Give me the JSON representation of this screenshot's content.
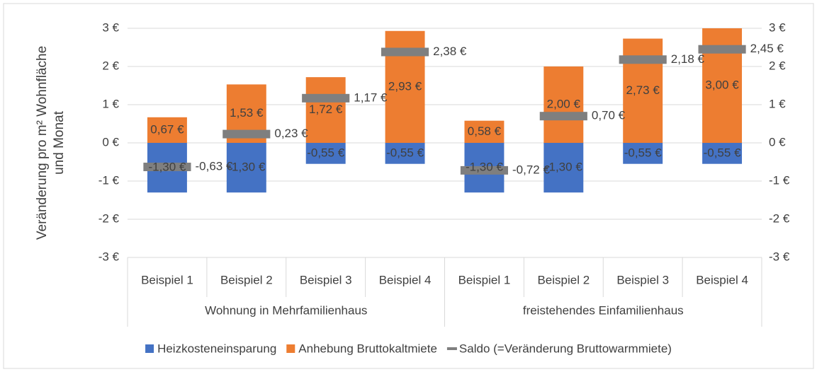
{
  "chart_data": {
    "type": "bar",
    "y_label": [
      "Veränderung pro m² Wohnfläche",
      "und Monat"
    ],
    "groups": [
      {
        "name": "Wohnung in Mehrfamilienhaus",
        "categories": [
          "Beispiel 1",
          "Beispiel 2",
          "Beispiel 3",
          "Beispiel 4"
        ]
      },
      {
        "name": "freistehendes Einfamilienhaus",
        "categories": [
          "Beispiel 1",
          "Beispiel 2",
          "Beispiel 3",
          "Beispiel 4"
        ]
      }
    ],
    "series": [
      {
        "name": "Heizkosteneinsparung",
        "color": "#4472c4",
        "kind": "bar",
        "values": [
          -1.3,
          -1.3,
          -0.55,
          -0.55,
          -1.3,
          -1.3,
          -0.55,
          -0.55
        ],
        "value_labels": [
          "-1,30 €",
          "-1,30 €",
          "-0,55 €",
          "-0,55 €",
          "-1,30 €",
          "-1,30 €",
          "-0,55 €",
          "-0,55 €"
        ]
      },
      {
        "name": "Anhebung Bruttokaltmiete",
        "color": "#ed7d31",
        "kind": "bar",
        "values": [
          0.67,
          1.53,
          1.72,
          2.93,
          0.58,
          2.0,
          2.73,
          3.0
        ],
        "value_labels": [
          "0,67 €",
          "1,53 €",
          "1,72 €",
          "2,93 €",
          "0,58 €",
          "2,00 €",
          "2,73 €",
          "3,00 €"
        ]
      },
      {
        "name": "Saldo (=Veränderung Bruttowarmmiete)",
        "color": "#7f7f7f",
        "kind": "marker",
        "values": [
          -0.63,
          0.23,
          1.17,
          2.38,
          -0.72,
          0.7,
          2.18,
          2.45
        ],
        "value_labels": [
          "-0,63 €",
          "0,23 €",
          "1,17 €",
          "2,38 €",
          "-0,72 €",
          "0,70 €",
          "2,18 €",
          "2,45 €"
        ]
      }
    ],
    "ylim": [
      -3,
      3
    ],
    "yticks": [
      {
        "value": -3,
        "label": "-3 €"
      },
      {
        "value": -2,
        "label": "-2 €"
      },
      {
        "value": -1,
        "label": "-1 €"
      },
      {
        "value": 0,
        "label": "0 €"
      },
      {
        "value": 1,
        "label": "1 €"
      },
      {
        "value": 2,
        "label": "2 €"
      },
      {
        "value": 3,
        "label": "3 €"
      }
    ],
    "y2lim": [
      -3,
      3
    ],
    "y2ticks": [
      {
        "value": -3,
        "label": "-3 €"
      },
      {
        "value": -2,
        "label": "-2 €"
      },
      {
        "value": -1,
        "label": "-1 €"
      },
      {
        "value": 0,
        "label": "0 €"
      },
      {
        "value": 1,
        "label": "1 €"
      },
      {
        "value": 2,
        "label": "2 €"
      },
      {
        "value": 3,
        "label": "3 €"
      }
    ],
    "grid": true,
    "legend": "bottom"
  }
}
